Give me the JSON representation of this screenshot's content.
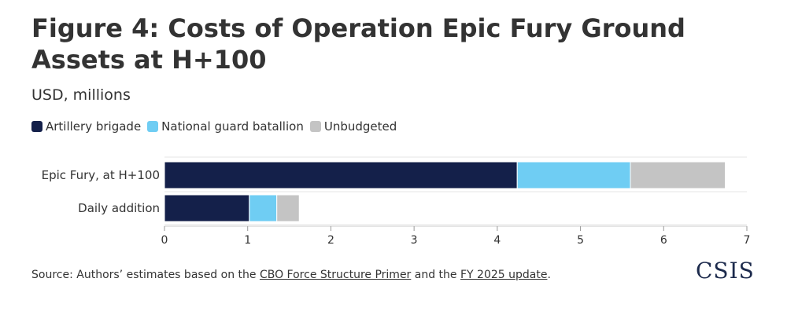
{
  "header": {
    "title": "Figure 4: Costs of Operation Epic Fury Ground Assets at H+100",
    "subtitle": "USD, millions"
  },
  "legend": {
    "items": [
      {
        "label": "Artillery brigade",
        "color": "#14204a"
      },
      {
        "label": "National guard batallion",
        "color": "#6fcdf3"
      },
      {
        "label": "Unbudgeted",
        "color": "#c4c4c4"
      }
    ]
  },
  "chart_data": {
    "type": "bar",
    "orientation": "horizontal",
    "stacked": true,
    "categories": [
      "Epic Fury, at H+100",
      "Daily addition"
    ],
    "series": [
      {
        "name": "Artillery brigade",
        "values": [
          4.24,
          1.02
        ],
        "color": "#14204a"
      },
      {
        "name": "National guard batallion",
        "values": [
          1.36,
          0.33
        ],
        "color": "#6fcdf3"
      },
      {
        "name": "Unbudgeted",
        "values": [
          1.14,
          0.27
        ],
        "color": "#c4c4c4"
      }
    ],
    "xlim": [
      0,
      7
    ],
    "xticks": [
      "0",
      "1",
      "2",
      "3",
      "4",
      "5",
      "6",
      "7"
    ],
    "xlabel": "",
    "ylabel": "",
    "legend_position": "top-left",
    "grid": true
  },
  "footer": {
    "source_prefix": "Source: Authors’ estimates based on the ",
    "link1": "CBO Force Structure Primer",
    "source_middle": " and the ",
    "link2": "FY 2025 update",
    "source_suffix": ".",
    "logo": "CSIS"
  }
}
